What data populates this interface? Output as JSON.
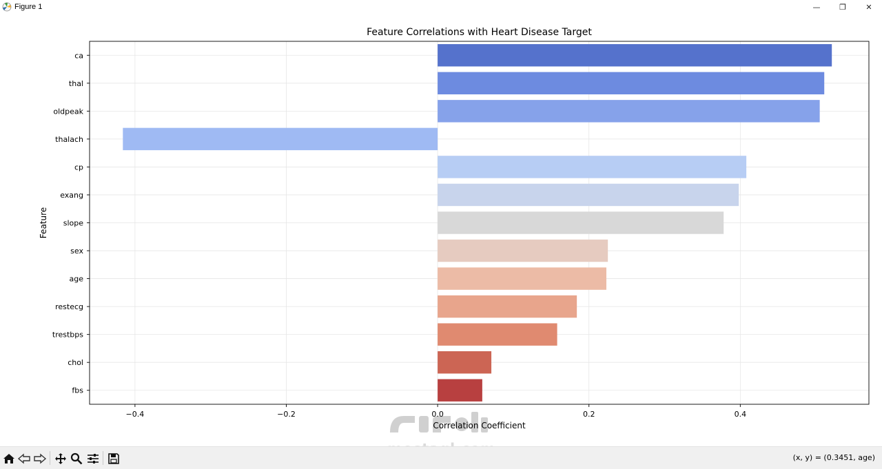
{
  "window": {
    "title": "Figure 1",
    "minimize_glyph": "—",
    "maximize_glyph": "❐",
    "close_glyph": "✕"
  },
  "toolbar": {
    "tools": [
      {
        "name": "home-icon"
      },
      {
        "name": "back-arrow-icon"
      },
      {
        "name": "forward-arrow-icon"
      },
      {
        "name": "pan-move-icon"
      },
      {
        "name": "zoom-magnifier-icon"
      },
      {
        "name": "configure-subplots-icon"
      },
      {
        "name": "save-floppy-icon"
      }
    ],
    "coords_text": "(x, y) = (0.3451, age)"
  },
  "watermark": {
    "text": "mostaql.com"
  },
  "chart_data": {
    "type": "bar",
    "orientation": "horizontal",
    "title": "Feature Correlations with Heart Disease Target",
    "xlabel": "Correlation Coefficient",
    "ylabel": "Feature",
    "categories": [
      "ca",
      "thal",
      "oldpeak",
      "thalach",
      "cp",
      "exang",
      "slope",
      "sex",
      "age",
      "restecg",
      "trestbps",
      "chol",
      "fbs"
    ],
    "values": [
      0.521,
      0.511,
      0.505,
      -0.416,
      0.408,
      0.398,
      0.378,
      0.225,
      0.223,
      0.184,
      0.158,
      0.071,
      0.059
    ],
    "colors": [
      "#5572cc",
      "#6d8be0",
      "#86a2ea",
      "#9fbaf3",
      "#b7cdf4",
      "#c8d4ec",
      "#d8d8d8",
      "#e6cbc0",
      "#ecbba6",
      "#e8a58c",
      "#e08a70",
      "#cc6554",
      "#b84040"
    ],
    "xlim": [
      -0.46,
      0.57
    ],
    "xticks": [
      -0.4,
      -0.2,
      0.0,
      0.2,
      0.4
    ],
    "xtick_labels": [
      "−0.4",
      "−0.2",
      "0.0",
      "0.2",
      "0.4"
    ],
    "grid": true
  }
}
